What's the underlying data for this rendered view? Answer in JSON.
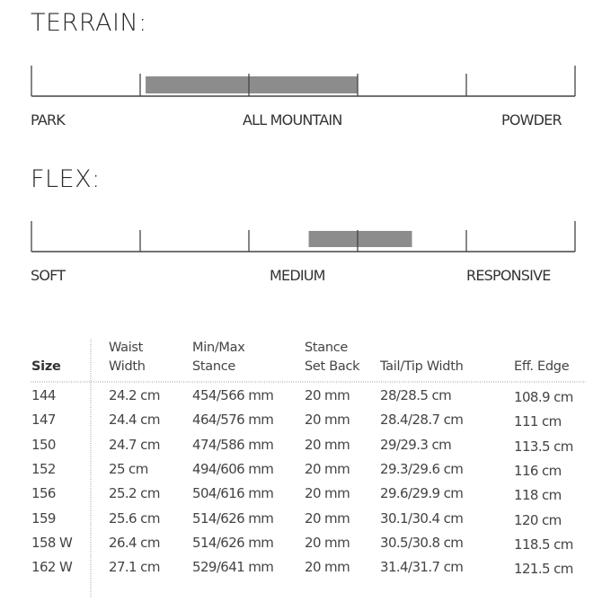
{
  "chart_data": [
    {
      "type": "range-scale",
      "title": "TERRAIN:",
      "tick_labels": [
        "PARK",
        "ALL MOUNTAIN",
        "POWDER"
      ],
      "range": [
        0.21,
        0.6
      ],
      "bar_color": "#8c8c8c"
    },
    {
      "type": "range-scale",
      "title": "FLEX:",
      "tick_labels": [
        "SOFT",
        "MEDIUM",
        "RESPONSIVE"
      ],
      "range": [
        0.51,
        0.7
      ],
      "bar_color": "#8c8c8c"
    },
    {
      "type": "table",
      "headers": [
        [
          "",
          "Size"
        ],
        [
          "Waist",
          "Width"
        ],
        [
          "Min/Max",
          "Stance"
        ],
        [
          "Stance",
          "Set Back"
        ],
        [
          "",
          "Tail/Tip Width"
        ],
        [
          "",
          "Eff. Edge"
        ]
      ],
      "rows": [
        [
          "144",
          "24.2 cm",
          "454/566 mm",
          "20 mm",
          "28/28.5 cm",
          "108.9 cm"
        ],
        [
          "147",
          "24.4 cm",
          "464/576 mm",
          "20 mm",
          "28.4/28.7 cm",
          "111 cm"
        ],
        [
          "150",
          "24.7 cm",
          "474/586 mm",
          "20 mm",
          "29/29.3 cm",
          "113.5 cm"
        ],
        [
          "152",
          "25 cm",
          "494/606 mm",
          "20 mm",
          "29.3/29.6 cm",
          "116 cm"
        ],
        [
          "156",
          "25.2 cm",
          "504/616 mm",
          "20 mm",
          "29.6/29.9 cm",
          "118 cm"
        ],
        [
          "159",
          "25.6 cm",
          "514/626 mm",
          "20 mm",
          "30.1/30.4 cm",
          "120 cm"
        ],
        [
          "158 W",
          "26.4 cm",
          "514/626 mm",
          "20 mm",
          "30.5/30.8 cm",
          "118.5 cm"
        ],
        [
          "162 W",
          "27.1 cm",
          "529/641 mm",
          "20 mm",
          "31.4/31.7 cm",
          "121.5 cm"
        ]
      ]
    }
  ]
}
